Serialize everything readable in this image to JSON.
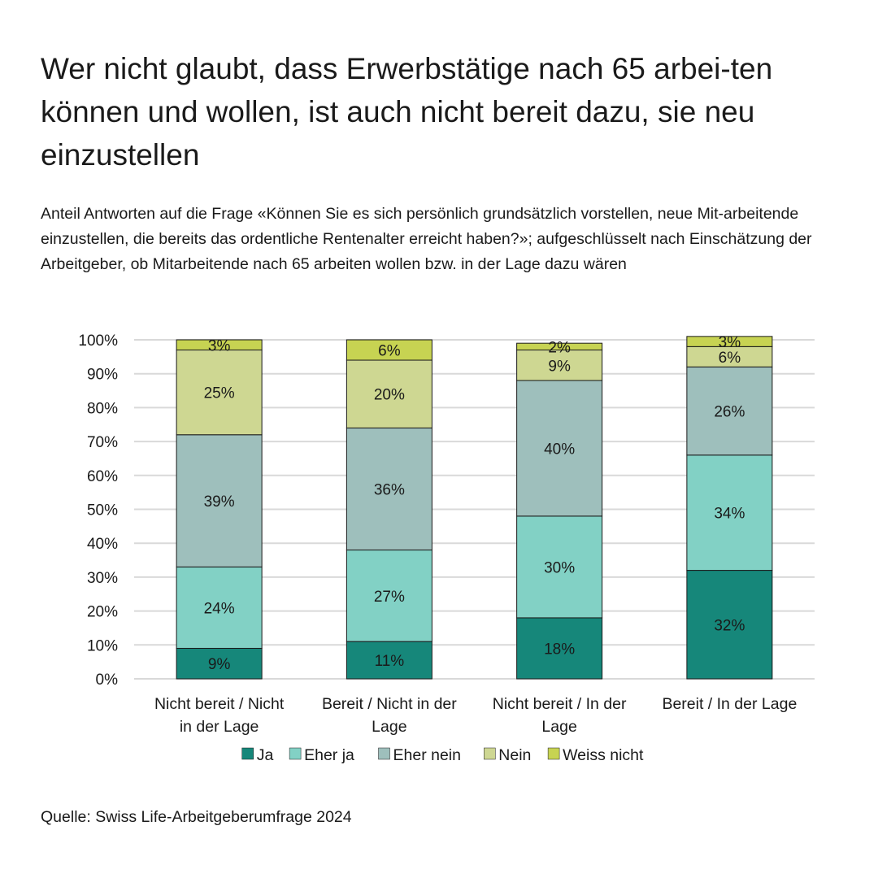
{
  "title": "Wer nicht glaubt, dass Erwerbstätige nach 65 arbei-ten können und wollen, ist auch nicht bereit dazu, sie neu einzustellen",
  "subtitle": "Anteil Antworten auf die Frage «Können Sie es sich persönlich grundsätzlich vorstellen, neue Mit-arbeitende einzustellen, die bereits das ordentliche Rentenalter erreicht haben?»; aufgeschlüsselt nach Einschätzung der Arbeitgeber, ob Mitarbeitende nach 65 arbeiten wollen bzw. in der Lage dazu wären",
  "source": "Quelle: Swiss Life-Arbeitgeberumfrage 2024",
  "colors": {
    "Ja": "#16877a",
    "Eher ja": "#82d1c5",
    "Eher nein": "#9ebfbc",
    "Nein": "#ced792",
    "Weiss nicht": "#c7d352",
    "grid": "#d9d9d9",
    "outline": "#1a1a1a"
  },
  "chart_data": {
    "type": "bar",
    "stacked": true,
    "title": "",
    "xlabel": "",
    "ylabel": "",
    "ylim": [
      0,
      100
    ],
    "yticks": [
      "0%",
      "10%",
      "20%",
      "30%",
      "40%",
      "50%",
      "60%",
      "70%",
      "80%",
      "90%",
      "100%"
    ],
    "grid": true,
    "legend_position": "bottom",
    "categories": [
      [
        "Nicht bereit / Nicht",
        "in der Lage"
      ],
      [
        "Bereit / Nicht in der",
        "Lage"
      ],
      [
        "Nicht bereit / In der",
        "Lage"
      ],
      [
        "Bereit / In der Lage"
      ]
    ],
    "series": [
      {
        "name": "Ja",
        "values": [
          9,
          11,
          18,
          32
        ],
        "labels": [
          "9%",
          "11%",
          "18%",
          "32%"
        ]
      },
      {
        "name": "Eher ja",
        "values": [
          24,
          27,
          30,
          34
        ],
        "labels": [
          "24%",
          "27%",
          "30%",
          "34%"
        ]
      },
      {
        "name": "Eher nein",
        "values": [
          39,
          36,
          40,
          26
        ],
        "labels": [
          "39%",
          "36%",
          "40%",
          "26%"
        ]
      },
      {
        "name": "Nein",
        "values": [
          25,
          20,
          9,
          6
        ],
        "labels": [
          "25%",
          "20%",
          "9%",
          "6%"
        ]
      },
      {
        "name": "Weiss nicht",
        "values": [
          3,
          6,
          2,
          3
        ],
        "labels": [
          "3%",
          "6%",
          "2%",
          "3%"
        ]
      }
    ]
  }
}
